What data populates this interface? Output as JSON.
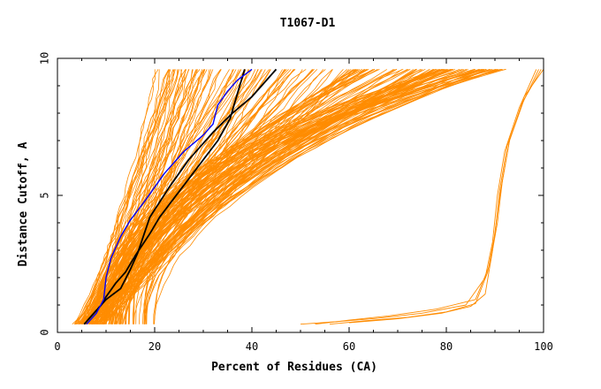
{
  "chart_data": {
    "type": "line",
    "title": "T1067-D1",
    "xlabel": "Percent of Residues (CA)",
    "ylabel": "Distance Cutoff, A",
    "xlim": [
      0,
      100
    ],
    "ylim": [
      0,
      10
    ],
    "x_ticks": [
      "0",
      "20",
      "40",
      "60",
      "80",
      "100"
    ],
    "y_ticks": [
      "0",
      "5",
      "10"
    ],
    "grid": false,
    "colors": {
      "models": "#ff8c00",
      "reference_black": "#000000",
      "reference_blue": "#0000ff",
      "axis": "#000000"
    },
    "bundles": [
      {
        "x0": [
          3,
          10
        ],
        "x1": [
          20,
          34
        ],
        "count": 40,
        "bend": [
          0.6,
          1.1
        ]
      },
      {
        "x0": [
          4,
          9
        ],
        "x1": [
          34,
          50
        ],
        "count": 30,
        "bend": [
          0.7,
          1.2
        ]
      },
      {
        "x0": [
          5,
          9
        ],
        "x1": [
          45,
          62
        ],
        "count": 20,
        "bend": [
          0.9,
          1.4
        ]
      },
      {
        "x0": [
          6,
          14
        ],
        "x1": [
          60,
          82
        ],
        "count": 50,
        "bend": [
          1.3,
          2.0
        ]
      },
      {
        "x0": [
          8,
          20
        ],
        "x1": [
          76,
          93
        ],
        "count": 45,
        "bend": [
          1.8,
          2.8
        ]
      }
    ],
    "outlier_series": [
      {
        "x": [
          53,
          60,
          68,
          78,
          86,
          89,
          90.5,
          91.5,
          93,
          96,
          99.5
        ],
        "y": [
          0.3,
          0.45,
          0.6,
          0.85,
          1.2,
          2.5,
          4,
          5.5,
          7,
          8.5,
          9.6
        ]
      },
      {
        "x": [
          56,
          63,
          72,
          80,
          86,
          88.5,
          90,
          91,
          92.5,
          95.5,
          99
        ],
        "y": [
          0.3,
          0.42,
          0.55,
          0.75,
          1.05,
          2.2,
          3.6,
          5.2,
          6.8,
          8.3,
          9.6
        ]
      },
      {
        "x": [
          50,
          58,
          66,
          75,
          84,
          88,
          89.5,
          90.5,
          92,
          95,
          98.5
        ],
        "y": [
          0.3,
          0.4,
          0.52,
          0.7,
          1.0,
          2.0,
          3.3,
          5.0,
          6.6,
          8.2,
          9.6
        ]
      },
      {
        "x": [
          60,
          70,
          79,
          85,
          88,
          89.5,
          91,
          93,
          96,
          100
        ],
        "y": [
          0.35,
          0.5,
          0.7,
          0.95,
          1.4,
          3.0,
          5.0,
          7.0,
          8.6,
          9.6
        ]
      }
    ],
    "black_series": [
      {
        "x": [
          5.5,
          7,
          9,
          10,
          12,
          14,
          16,
          19,
          21,
          24,
          27,
          30,
          33,
          35.5,
          37,
          38.5
        ],
        "y": [
          0.3,
          0.6,
          1.0,
          1.3,
          1.8,
          2.2,
          2.8,
          3.6,
          4.2,
          4.9,
          5.6,
          6.3,
          7.0,
          7.8,
          8.7,
          9.6
        ]
      },
      {
        "x": [
          5.5,
          8,
          10,
          13,
          15,
          16.5,
          19,
          23,
          27,
          32,
          36,
          40,
          42,
          45
        ],
        "y": [
          0.3,
          0.8,
          1.2,
          1.6,
          2.3,
          2.9,
          4.2,
          5.3,
          6.3,
          7.3,
          8.0,
          8.6,
          9.0,
          9.6
        ]
      }
    ],
    "blue_series": [
      {
        "x": [
          6,
          8,
          9.5,
          10,
          11,
          13,
          15,
          18,
          22,
          26,
          30,
          32,
          33,
          35,
          37,
          40
        ],
        "y": [
          0.3,
          0.7,
          1.2,
          2.0,
          2.7,
          3.5,
          4.1,
          4.8,
          5.8,
          6.6,
          7.2,
          7.6,
          8.3,
          8.8,
          9.2,
          9.6
        ]
      }
    ]
  }
}
